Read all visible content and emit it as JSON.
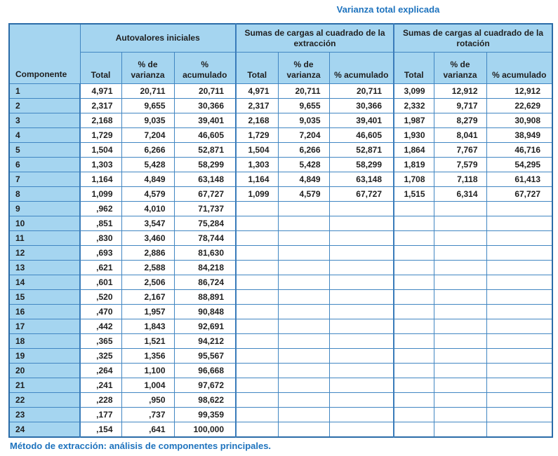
{
  "title": "Varianza total explicada",
  "footer": "Método de extracción: análisis de componentes principales.",
  "colors": {
    "header_fill": "#a5d5f0",
    "grid_line": "#4186c2",
    "outer_border": "#2b6ca8",
    "accent_text": "#1e73be",
    "data_text": "#1f1f1f"
  },
  "table": {
    "row_header": "Componente",
    "groups": [
      {
        "label": "Autovalores iniciales",
        "columns": [
          "Total",
          "% de varianza",
          "% acumulado"
        ]
      },
      {
        "label": "Sumas de cargas al cuadrado de la extracción",
        "columns": [
          "Total",
          "% de varianza",
          "% acumulado"
        ]
      },
      {
        "label": "Sumas de cargas al cuadrado de la rotación",
        "columns": [
          "Total",
          "% de varianza",
          "% acumulado"
        ]
      }
    ],
    "rows": [
      {
        "componente": "1",
        "cells": [
          "4,971",
          "20,711",
          "20,711",
          "4,971",
          "20,711",
          "20,711",
          "3,099",
          "12,912",
          "12,912"
        ]
      },
      {
        "componente": "2",
        "cells": [
          "2,317",
          "9,655",
          "30,366",
          "2,317",
          "9,655",
          "30,366",
          "2,332",
          "9,717",
          "22,629"
        ]
      },
      {
        "componente": "3",
        "cells": [
          "2,168",
          "9,035",
          "39,401",
          "2,168",
          "9,035",
          "39,401",
          "1,987",
          "8,279",
          "30,908"
        ]
      },
      {
        "componente": "4",
        "cells": [
          "1,729",
          "7,204",
          "46,605",
          "1,729",
          "7,204",
          "46,605",
          "1,930",
          "8,041",
          "38,949"
        ]
      },
      {
        "componente": "5",
        "cells": [
          "1,504",
          "6,266",
          "52,871",
          "1,504",
          "6,266",
          "52,871",
          "1,864",
          "7,767",
          "46,716"
        ]
      },
      {
        "componente": "6",
        "cells": [
          "1,303",
          "5,428",
          "58,299",
          "1,303",
          "5,428",
          "58,299",
          "1,819",
          "7,579",
          "54,295"
        ]
      },
      {
        "componente": "7",
        "cells": [
          "1,164",
          "4,849",
          "63,148",
          "1,164",
          "4,849",
          "63,148",
          "1,708",
          "7,118",
          "61,413"
        ]
      },
      {
        "componente": "8",
        "cells": [
          "1,099",
          "4,579",
          "67,727",
          "1,099",
          "4,579",
          "67,727",
          "1,515",
          "6,314",
          "67,727"
        ]
      },
      {
        "componente": "9",
        "cells": [
          ",962",
          "4,010",
          "71,737",
          "",
          "",
          "",
          "",
          "",
          ""
        ]
      },
      {
        "componente": "10",
        "cells": [
          ",851",
          "3,547",
          "75,284",
          "",
          "",
          "",
          "",
          "",
          ""
        ]
      },
      {
        "componente": "11",
        "cells": [
          ",830",
          "3,460",
          "78,744",
          "",
          "",
          "",
          "",
          "",
          ""
        ]
      },
      {
        "componente": "12",
        "cells": [
          ",693",
          "2,886",
          "81,630",
          "",
          "",
          "",
          "",
          "",
          ""
        ]
      },
      {
        "componente": "13",
        "cells": [
          ",621",
          "2,588",
          "84,218",
          "",
          "",
          "",
          "",
          "",
          ""
        ]
      },
      {
        "componente": "14",
        "cells": [
          ",601",
          "2,506",
          "86,724",
          "",
          "",
          "",
          "",
          "",
          ""
        ]
      },
      {
        "componente": "15",
        "cells": [
          ",520",
          "2,167",
          "88,891",
          "",
          "",
          "",
          "",
          "",
          ""
        ]
      },
      {
        "componente": "16",
        "cells": [
          ",470",
          "1,957",
          "90,848",
          "",
          "",
          "",
          "",
          "",
          ""
        ]
      },
      {
        "componente": "17",
        "cells": [
          ",442",
          "1,843",
          "92,691",
          "",
          "",
          "",
          "",
          "",
          ""
        ]
      },
      {
        "componente": "18",
        "cells": [
          ",365",
          "1,521",
          "94,212",
          "",
          "",
          "",
          "",
          "",
          ""
        ]
      },
      {
        "componente": "19",
        "cells": [
          ",325",
          "1,356",
          "95,567",
          "",
          "",
          "",
          "",
          "",
          ""
        ]
      },
      {
        "componente": "20",
        "cells": [
          ",264",
          "1,100",
          "96,668",
          "",
          "",
          "",
          "",
          "",
          ""
        ]
      },
      {
        "componente": "21",
        "cells": [
          ",241",
          "1,004",
          "97,672",
          "",
          "",
          "",
          "",
          "",
          ""
        ]
      },
      {
        "componente": "22",
        "cells": [
          ",228",
          ",950",
          "98,622",
          "",
          "",
          "",
          "",
          "",
          ""
        ]
      },
      {
        "componente": "23",
        "cells": [
          ",177",
          ",737",
          "99,359",
          "",
          "",
          "",
          "",
          "",
          ""
        ]
      },
      {
        "componente": "24",
        "cells": [
          ",154",
          ",641",
          "100,000",
          "",
          "",
          "",
          "",
          "",
          ""
        ]
      }
    ]
  }
}
